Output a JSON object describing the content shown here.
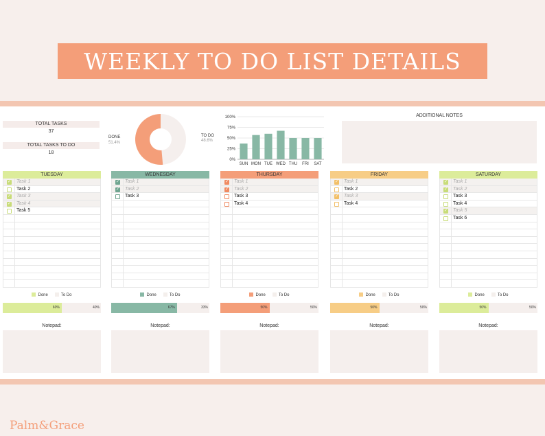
{
  "title": "WEEKLY TO DO LIST DETAILS",
  "stats": {
    "total_tasks_label": "TOTAL TASKS",
    "total_tasks_value": "37",
    "total_todo_label": "TOTAL TASKS TO DO",
    "total_todo_value": "18"
  },
  "donut": {
    "done_label": "DONE",
    "done_pct": "51.4%",
    "todo_label": "TO DO",
    "todo_pct": "48.6%",
    "done_fraction": 0.514,
    "done_color": "#f49e79",
    "todo_color": "#f5efed"
  },
  "chart_data": {
    "type": "bar",
    "categories": [
      "SUN",
      "MON",
      "TUE",
      "WED",
      "THU",
      "FRI",
      "SAT"
    ],
    "values": [
      37,
      57,
      60,
      67,
      50,
      50,
      50
    ],
    "ylim": [
      0,
      100
    ],
    "yticks": [
      "0%",
      "25%",
      "50%",
      "75%",
      "100%"
    ],
    "ytick_values": [
      0,
      25,
      50,
      75,
      100
    ],
    "grid": true,
    "bar_color": "#88b8a5"
  },
  "notes": {
    "title": "ADDITIONAL NOTES"
  },
  "legend": {
    "done": "Done",
    "todo": "To Do"
  },
  "notepad_label": "Notepad:",
  "days": [
    {
      "name": "TUESDAY",
      "color": "#dcec9a",
      "check": "#c8dc78",
      "tasks": [
        {
          "label": "Task 1",
          "done": true
        },
        {
          "label": "Task 2",
          "done": false
        },
        {
          "label": "Task 3",
          "done": true
        },
        {
          "label": "Task 4",
          "done": true
        },
        {
          "label": "Task 5",
          "done": false
        }
      ],
      "done_pct": "60%",
      "todo_pct": "40%",
      "done_fraction": 0.6
    },
    {
      "name": "WEDNESDAY",
      "color": "#88b8a5",
      "check": "#6fa590",
      "tasks": [
        {
          "label": "Task 1",
          "done": true
        },
        {
          "label": "Task 2",
          "done": true
        },
        {
          "label": "Task 3",
          "done": false
        }
      ],
      "done_pct": "67%",
      "todo_pct": "33%",
      "done_fraction": 0.67
    },
    {
      "name": "THURSDAY",
      "color": "#f49e79",
      "check": "#f08a61",
      "tasks": [
        {
          "label": "Task 1",
          "done": true
        },
        {
          "label": "Task 2",
          "done": true
        },
        {
          "label": "Task 3",
          "done": false
        },
        {
          "label": "Task 4",
          "done": false
        }
      ],
      "done_pct": "50%",
      "todo_pct": "50%",
      "done_fraction": 0.5
    },
    {
      "name": "FRIDAY",
      "color": "#f7cd86",
      "check": "#f2bf66",
      "tasks": [
        {
          "label": "Task 1",
          "done": true
        },
        {
          "label": "Task 2",
          "done": false
        },
        {
          "label": "Task 3",
          "done": true
        },
        {
          "label": "Task 4",
          "done": false
        }
      ],
      "done_pct": "50%",
      "todo_pct": "50%",
      "done_fraction": 0.5
    },
    {
      "name": "SATURDAY",
      "color": "#dcec9a",
      "check": "#c8dc78",
      "tasks": [
        {
          "label": "Task 1",
          "done": true
        },
        {
          "label": "Task 2",
          "done": true
        },
        {
          "label": "Task 3",
          "done": false
        },
        {
          "label": "Task 4",
          "done": false
        },
        {
          "label": "Task 5",
          "done": true
        },
        {
          "label": "Task 6",
          "done": false
        }
      ],
      "done_pct": "50%",
      "todo_pct": "50%",
      "done_fraction": 0.5
    }
  ],
  "brand": "Palm&Grace"
}
